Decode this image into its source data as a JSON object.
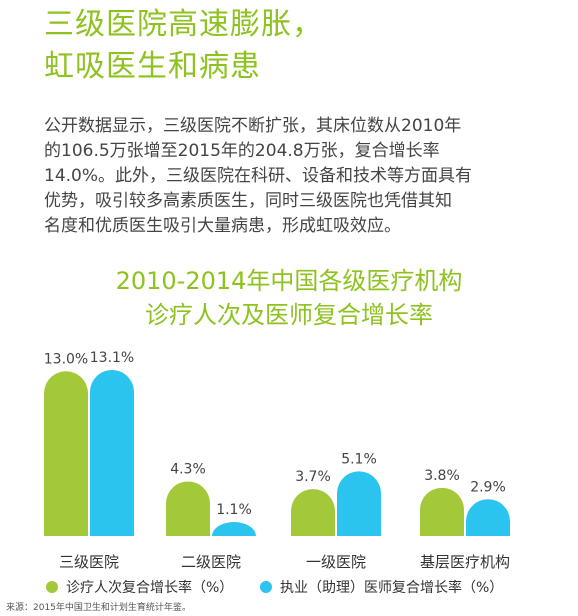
{
  "headline": {
    "line1": "三级医院高速膨胀，",
    "line2": "虹吸医生和病患"
  },
  "paragraph": {
    "line1": "公开数据显示，三级医院不断扩张，其床位数从2010年",
    "line2": "的106.5万张增至2015年的204.8万张，复合增长率",
    "line3": "14.0%。此外，三级医院在科研、设备和技术等方面具有",
    "line4": "优势，吸引较多高素质医生，同时三级医院也凭借其知",
    "line5": "名度和优质医生吸引大量病患，形成虹吸效应。"
  },
  "chart_title": {
    "line1": "2010-2014年中国各级医疗机构",
    "line2": "诊疗人次及医师复合增长率"
  },
  "chart_data": {
    "type": "bar",
    "title": "2010-2014年中国各级医疗机构诊疗人次及医师复合增长率",
    "categories": [
      "三级医院",
      "二级医院",
      "一级医院",
      "基层医疗机构"
    ],
    "series": [
      {
        "name": "诊疗人次复合增长率（%）",
        "values": [
          13.0,
          4.3,
          3.7,
          3.8
        ],
        "labels": [
          "13.0%",
          "4.3%",
          "3.7%",
          "3.8%"
        ],
        "color": "#a3c93a"
      },
      {
        "name": "执业（助理）医师复合增长率（%）",
        "values": [
          13.1,
          1.1,
          5.1,
          2.9
        ],
        "labels": [
          "13.1%",
          "1.1%",
          "5.1%",
          "2.9%"
        ],
        "color": "#2bc4ef"
      }
    ],
    "ylim": [
      0,
      13.1
    ],
    "grid": false,
    "legend": "bottom"
  },
  "source": "来源：2015年中国卫生和计划生育统计年鉴。"
}
